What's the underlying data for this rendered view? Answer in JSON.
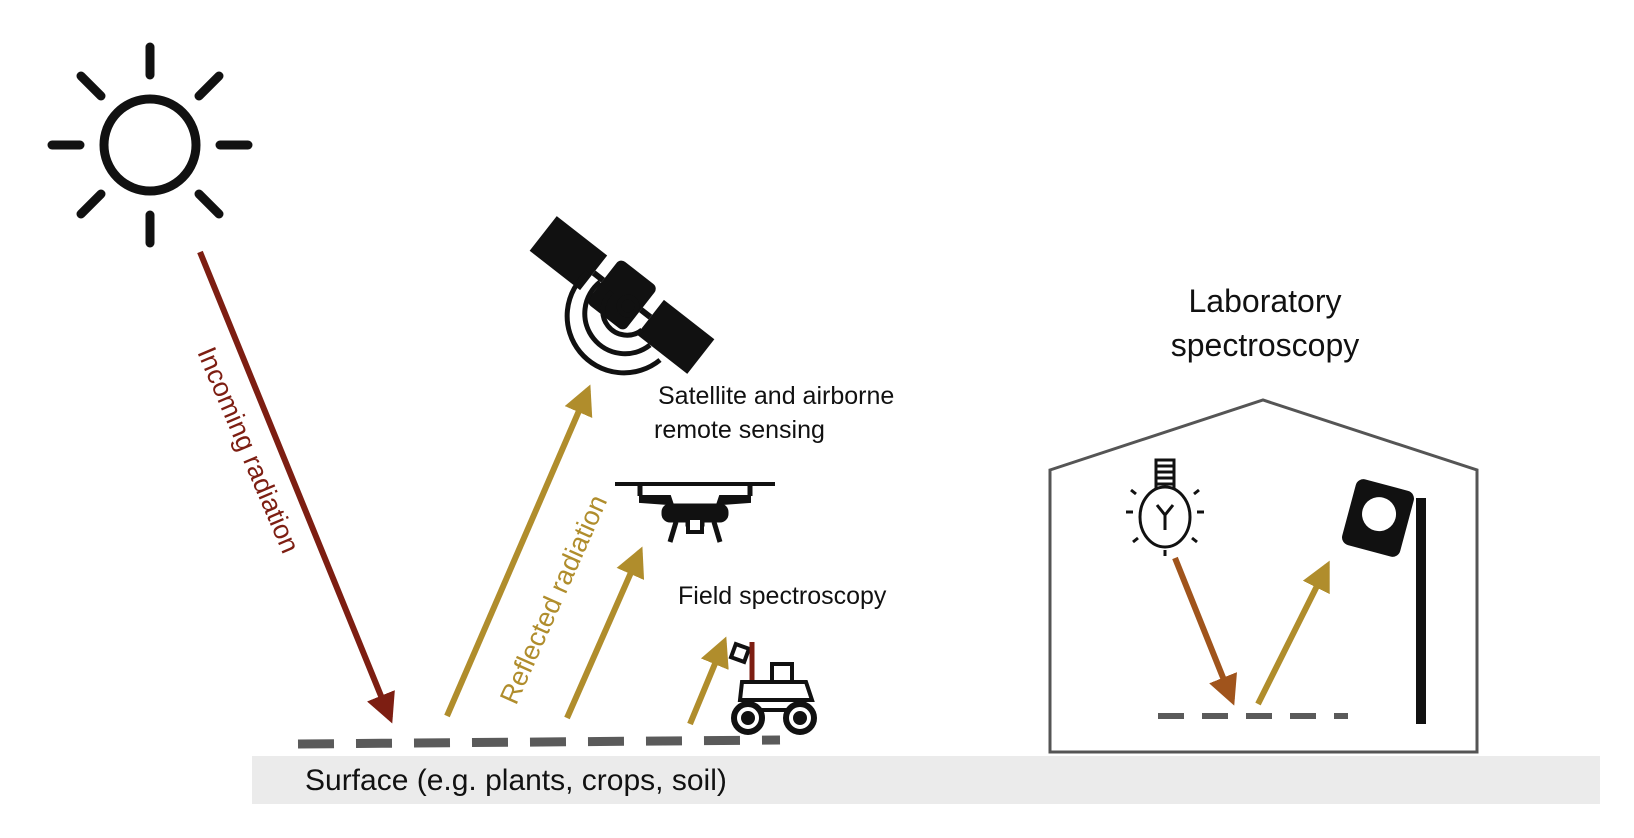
{
  "labels": {
    "incoming": "Incoming radiation",
    "reflected": "Reflected radiation",
    "satellite_line1": "Satellite and airborne",
    "satellite_line2": "remote sensing",
    "field": "Field spectroscopy",
    "lab_line1": "Laboratory",
    "lab_line2": "spectroscopy",
    "surface": "Surface (e.g. plants, crops, soil)"
  },
  "icons": [
    "sun-icon",
    "satellite-icon",
    "drone-icon",
    "rover-icon",
    "light-bulb-icon",
    "spectrometer-icon"
  ],
  "colors": {
    "incoming": "#7d1e12",
    "reflected": "#b08d2c",
    "lab_incoming": "#a0541c",
    "surface_band": "#ebebeb",
    "dash": "#5a5a5a",
    "lab_outline": "#555555"
  }
}
